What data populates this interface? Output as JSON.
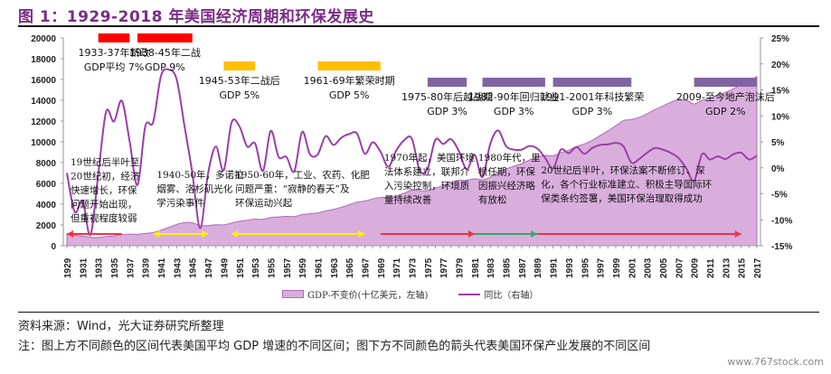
{
  "title": "图 1：1929-2018 年美国经济周期和环保发展史",
  "colors": {
    "title": "#7b2c88",
    "area_fill": "#d9aedd",
    "area_stroke": "#b06ab8",
    "line": "#9b3fa6",
    "red_band": "#ff0000",
    "yellow_band": "#ffc000",
    "purple_band": "#8064a2",
    "arrow_red": "#ee3344",
    "arrow_yellow": "#ffee00",
    "arrow_green": "#33aa66"
  },
  "chart_data": {
    "type": "area+line",
    "title": "1929-2018 年美国经济周期和环保发展史",
    "x": [
      1929,
      1930,
      1931,
      1932,
      1933,
      1934,
      1935,
      1936,
      1937,
      1938,
      1939,
      1940,
      1941,
      1942,
      1943,
      1944,
      1945,
      1946,
      1947,
      1948,
      1949,
      1950,
      1951,
      1952,
      1953,
      1954,
      1955,
      1956,
      1957,
      1958,
      1959,
      1960,
      1961,
      1962,
      1963,
      1964,
      1965,
      1966,
      1967,
      1968,
      1969,
      1970,
      1971,
      1972,
      1973,
      1974,
      1975,
      1976,
      1977,
      1978,
      1979,
      1980,
      1981,
      1982,
      1983,
      1984,
      1985,
      1986,
      1987,
      1988,
      1989,
      1990,
      1991,
      1992,
      1993,
      1994,
      1995,
      1996,
      1997,
      1998,
      1999,
      2000,
      2001,
      2002,
      2003,
      2004,
      2005,
      2006,
      2007,
      2008,
      2009,
      2010,
      2011,
      2012,
      2013,
      2014,
      2015,
      2016,
      2017
    ],
    "x_tick_labels": [
      "1929",
      "1931",
      "1933",
      "1935",
      "1937",
      "1939",
      "1941",
      "1943",
      "1945",
      "1947",
      "1949",
      "1951",
      "1953",
      "1955",
      "1957",
      "1959",
      "1961",
      "1963",
      "1965",
      "1967",
      "1969",
      "1971",
      "1973",
      "1975",
      "1977",
      "1979",
      "1981",
      "1983",
      "1985",
      "1987",
      "1989",
      "1991",
      "1993",
      "1995",
      "1997",
      "1999",
      "2001",
      "2003",
      "2005",
      "2007",
      "2009",
      "2011",
      "2013",
      "2015",
      "2017"
    ],
    "series": [
      {
        "name": "GDP-不变价(十亿美元，左轴)",
        "type": "area",
        "axis": "left",
        "values": [
          1100,
          1000,
          920,
          800,
          790,
          880,
          950,
          1070,
          1120,
          1100,
          1180,
          1270,
          1500,
          1760,
          2050,
          2230,
          2210,
          1950,
          1940,
          2020,
          2010,
          2180,
          2360,
          2450,
          2560,
          2540,
          2720,
          2770,
          2830,
          2800,
          3000,
          3080,
          3160,
          3350,
          3500,
          3700,
          3950,
          4200,
          4300,
          4500,
          4650,
          4660,
          4800,
          5050,
          5350,
          5300,
          5300,
          5550,
          5800,
          6100,
          6300,
          6300,
          6450,
          6350,
          6600,
          7100,
          7400,
          7650,
          7900,
          8250,
          8550,
          8700,
          8650,
          8950,
          9200,
          9550,
          9800,
          10150,
          10600,
          11050,
          11550,
          12050,
          12150,
          12350,
          12700,
          13100,
          13450,
          13800,
          14050,
          14000,
          13650,
          14000,
          14200,
          14500,
          14750,
          15100,
          15550,
          15800,
          16300
        ]
      },
      {
        "name": "同比（右轴）",
        "type": "line",
        "axis": "right",
        "values": [
          -1.0,
          -8.5,
          -6.4,
          -12.9,
          -1.2,
          10.8,
          8.9,
          12.9,
          5.1,
          -3.3,
          8.0,
          8.8,
          17.7,
          18.9,
          17.0,
          8.0,
          -1.0,
          -11.6,
          -1.1,
          4.1,
          -0.5,
          8.7,
          8.0,
          4.1,
          4.7,
          -0.6,
          7.1,
          2.1,
          2.1,
          -0.7,
          6.9,
          2.6,
          2.6,
          6.1,
          4.4,
          5.8,
          6.5,
          6.6,
          2.7,
          4.9,
          3.1,
          0.2,
          3.3,
          5.3,
          5.6,
          -0.5,
          -0.2,
          5.4,
          4.6,
          5.5,
          3.2,
          -0.3,
          2.5,
          -1.8,
          4.6,
          7.2,
          4.2,
          3.5,
          3.5,
          4.2,
          3.7,
          1.9,
          -0.1,
          3.5,
          2.8,
          4.0,
          2.7,
          3.8,
          4.4,
          4.5,
          4.8,
          4.1,
          1.0,
          1.7,
          2.9,
          3.8,
          3.5,
          2.9,
          1.9,
          -0.1,
          -2.5,
          2.6,
          1.6,
          2.2,
          1.7,
          2.6,
          2.9,
          1.6,
          2.3
        ]
      }
    ],
    "y_left": {
      "min": 0,
      "max": 20000,
      "ticks": [
        "0",
        "2000",
        "4000",
        "6000",
        "8000",
        "10000",
        "12000",
        "14000",
        "16000",
        "18000",
        "20000"
      ]
    },
    "y_right": {
      "min": -15,
      "max": 25,
      "ticks": [
        "-15%",
        "-10%",
        "-5%",
        "0%",
        "5%",
        "10%",
        "15%",
        "20%",
        "25%"
      ]
    },
    "legend_position": "bottom",
    "gdp_periods": [
      {
        "start": 1933,
        "end": 1937,
        "color": "red",
        "label1": "1933-37年新政",
        "label2": "GDP平均 7%"
      },
      {
        "start": 1938,
        "end": 1945,
        "color": "red",
        "label1": "1938-45年二战",
        "label2": "GDP 9%"
      },
      {
        "start": 1949,
        "end": 1953,
        "color": "yellow",
        "label1": "1945-53年二战后",
        "label2": "GDP 5%"
      },
      {
        "start": 1961,
        "end": 1969,
        "color": "yellow",
        "label1": "1961-69年繁荣时期",
        "label2": "GDP 5%"
      },
      {
        "start": 1975,
        "end": 1980,
        "color": "purple",
        "label1": "1975-80年后越战期",
        "label2": "GDP 3%"
      },
      {
        "start": 1982,
        "end": 1990,
        "color": "purple",
        "label1": "1982-90年回归就业",
        "label2": "GDP 3%"
      },
      {
        "start": 1991,
        "end": 2001,
        "color": "purple",
        "label1": "1991-2001年科技繁荣",
        "label2": "GDP 3%"
      },
      {
        "start": 2009,
        "end": 2017,
        "color": "purple",
        "label1": "2009-至今地产泡沫后",
        "label2": "GDP 2%"
      }
    ],
    "env_periods": [
      {
        "start": 1929,
        "end": 1936,
        "color": "red",
        "dir": "left",
        "lines": [
          "19世纪后半叶至",
          "20世纪初，经济",
          "快速增长，环保",
          "问题开始出现，",
          "但重视程度较弱"
        ]
      },
      {
        "start": 1940,
        "end": 1947,
        "color": "yellow",
        "dir": "both",
        "lines": [
          "1940-50年，多诺拉",
          "烟雾、洛杉矶光化",
          "学污染事件"
        ]
      },
      {
        "start": 1950,
        "end": 1967,
        "color": "yellow",
        "dir": "both",
        "lines": [
          "1950-60年，工业、农药、化肥",
          "问题严重：“寂静的春天”及",
          "环保运动兴起"
        ]
      },
      {
        "start": 1969,
        "end": 1981,
        "color": "red",
        "dir": "right",
        "lines": [
          "1970年起，美国环境",
          "法体系建立，联邦介",
          "入污染控制，环境质",
          "量持续改善"
        ]
      },
      {
        "start": 1981,
        "end": 1989,
        "color": "green",
        "dir": "right",
        "lines": [
          "1980年代，里",
          "根任期，环保",
          "因振兴经济略",
          "有放松"
        ]
      },
      {
        "start": 1989,
        "end": 2015,
        "color": "red",
        "dir": "right",
        "lines": [
          "20世纪后半叶，环保法案不断修订、深",
          "化，各个行业标准建立、积极主导国际环",
          "保类条约签署，美国环保治理取得成功"
        ]
      }
    ]
  },
  "legend": {
    "area_label": "GDP-不变价(十亿美元，左轴)",
    "line_label": "同比（右轴）"
  },
  "source": "资料来源：Wind，光大证券研究所整理",
  "note": "注：图上方不同颜色的区间代表美国平均 GDP 增速的不同区间；图下方不同颜色的箭头代表美国环保产业发展的不同区间",
  "watermark": "www.767stock.com"
}
